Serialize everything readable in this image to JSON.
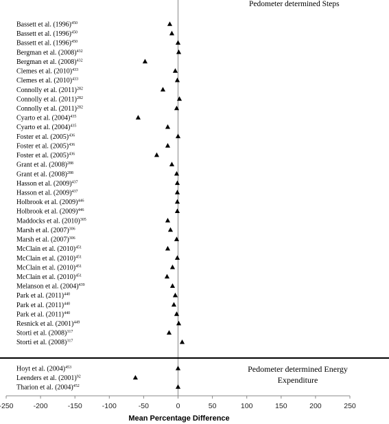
{
  "chart_data": {
    "type": "scatter",
    "xlabel": "Mean Percentage Difference",
    "xlim": [
      -250,
      250
    ],
    "xticks": [
      "-250",
      "-200",
      "-150",
      "-100",
      "-50",
      "0",
      "50",
      "100",
      "150",
      "200",
      "250"
    ],
    "reference_line_x": 0,
    "marker": "triangle",
    "sections": [
      {
        "title": "Pedometer determined Steps",
        "rows": [
          {
            "study": "Bassett et al. (1996)",
            "ref": "450",
            "value": -12
          },
          {
            "study": "Bassett et al. (1996)",
            "ref": "450",
            "value": -9
          },
          {
            "study": "Bassett et al. (1996)",
            "ref": "450",
            "value": 0
          },
          {
            "study": "Bergman et al. (2008)",
            "ref": "432",
            "value": 1
          },
          {
            "study": "Bergman et al. (2008)",
            "ref": "432",
            "value": -48
          },
          {
            "study": "Clemes et al. (2010)",
            "ref": "433",
            "value": -4
          },
          {
            "study": "Clemes et al. (2010)",
            "ref": "433",
            "value": -1
          },
          {
            "study": "Connolly et al. (2011)",
            "ref": "282",
            "value": -22
          },
          {
            "study": "Connolly et al. (2011)",
            "ref": "282",
            "value": 2
          },
          {
            "study": "Connolly et al. (2011)",
            "ref": "282",
            "value": -2
          },
          {
            "study": "Cyarto et al. (2004)",
            "ref": "435",
            "value": -58
          },
          {
            "study": "Cyarto et al. (2004)",
            "ref": "435",
            "value": -15
          },
          {
            "study": "Foster et al. (2005)",
            "ref": "436",
            "value": 0
          },
          {
            "study": "Foster et al. (2005)",
            "ref": "436",
            "value": -15
          },
          {
            "study": "Foster et al. (2005)",
            "ref": "436",
            "value": -31
          },
          {
            "study": "Grant et al. (2008)",
            "ref": "288",
            "value": -9
          },
          {
            "study": "Grant et al. (2008)",
            "ref": "288",
            "value": -2
          },
          {
            "study": "Hasson et al. (2009)",
            "ref": "437",
            "value": -1
          },
          {
            "study": "Hasson et al. (2009)",
            "ref": "437",
            "value": -1
          },
          {
            "study": "Holbrook et al. (2009)",
            "ref": "446",
            "value": -1
          },
          {
            "study": "Holbrook et al. (2009)",
            "ref": "446",
            "value": -1
          },
          {
            "study": "Maddocks et al. (2010)",
            "ref": "305",
            "value": -15
          },
          {
            "study": "Marsh et al. (2007)",
            "ref": "306",
            "value": -11
          },
          {
            "study": "Marsh et al. (2007)",
            "ref": "306",
            "value": -2
          },
          {
            "study": "McClain et al. (2010)",
            "ref": "451",
            "value": -15
          },
          {
            "study": "McClain et al. (2010)",
            "ref": "451",
            "value": -1
          },
          {
            "study": "McClain et al. (2010)",
            "ref": "451",
            "value": -8
          },
          {
            "study": "McClain et al. (2010)",
            "ref": "451",
            "value": -16
          },
          {
            "study": "Melanson et al. (2004)",
            "ref": "439",
            "value": -8
          },
          {
            "study": "Park et al. (2011)",
            "ref": "440",
            "value": -4
          },
          {
            "study": "Park et al. (2011)",
            "ref": "440",
            "value": -6
          },
          {
            "study": "Park et al. (2011)",
            "ref": "440",
            "value": -2
          },
          {
            "study": "Resnick et al. (2001)",
            "ref": "449",
            "value": 1
          },
          {
            "study": "Storti et al. (2008)",
            "ref": "317",
            "value": -13
          },
          {
            "study": "Storti et al. (2008)",
            "ref": "317",
            "value": 6
          }
        ]
      },
      {
        "title": [
          "Pedometer determined Energy",
          "Expenditure"
        ],
        "rows": [
          {
            "study": "Hoyt et al. (2004)",
            "ref": "453",
            "value": 0
          },
          {
            "study": "Leenders et al. (2001)",
            "ref": "92",
            "value": -62
          },
          {
            "study": "Tharion et al. (2004)",
            "ref": "452",
            "value": 0
          }
        ]
      }
    ]
  }
}
